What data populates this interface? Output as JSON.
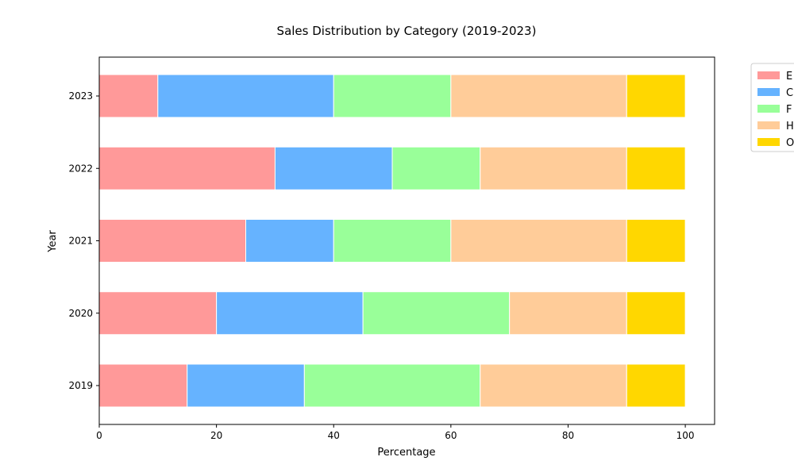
{
  "chart_data": {
    "type": "bar",
    "orientation": "horizontal",
    "stacked": true,
    "title": "Sales Distribution by Category (2019-2023)",
    "xlabel": "Percentage",
    "ylabel": "Year",
    "xlim": [
      0,
      105
    ],
    "x_ticks": [
      "0",
      "20",
      "40",
      "60",
      "80",
      "100"
    ],
    "categories": [
      "2019",
      "2020",
      "2021",
      "2022",
      "2023"
    ],
    "grid": false,
    "legend_position": "outside-top-right",
    "series": [
      {
        "name": "E",
        "color": "#ff9999",
        "values": [
          15,
          20,
          25,
          30,
          10
        ]
      },
      {
        "name": "C",
        "color": "#66b3ff",
        "values": [
          20,
          25,
          15,
          20,
          30
        ]
      },
      {
        "name": "F",
        "color": "#99ff99",
        "values": [
          30,
          25,
          20,
          15,
          20
        ]
      },
      {
        "name": "H",
        "color": "#ffcc99",
        "values": [
          25,
          20,
          30,
          25,
          30
        ]
      },
      {
        "name": "O",
        "color": "#ffd700",
        "values": [
          10,
          10,
          10,
          10,
          10
        ]
      }
    ]
  }
}
